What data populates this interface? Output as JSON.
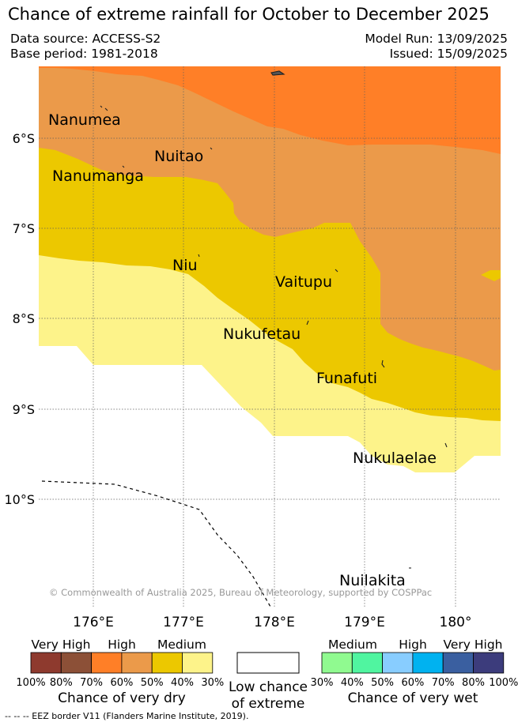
{
  "header": {
    "title": "Chance of extreme rainfall for October to December 2025",
    "data_source": "Data source: ACCESS-S2",
    "base_period": "Base period: 1981-2018",
    "model_run": "Model Run: 13/09/2025",
    "issued": "Issued: 15/09/2025"
  },
  "map": {
    "lat_labels": [
      "6°S",
      "7°S",
      "8°S",
      "9°S",
      "10°S"
    ],
    "lon_labels": [
      "176°E",
      "177°E",
      "178°E",
      "179°E",
      "180°"
    ],
    "islands": [
      "Nanumea",
      "Nuitao",
      "Nanumanga",
      "Niu",
      "Vaitupu",
      "Nukufetau",
      "Funafuti",
      "Nukulaelae",
      "Nuilakita"
    ],
    "copyright": "© Commonwealth of Australia 2025, Bureau of Meteorology, supported by COSPPac",
    "region_colors": {
      "very_high_dry": "#FF7F27",
      "high_dry": "#EB9A4A",
      "medium_dry": "#ECC800",
      "low_medium_dry": "#FDF38A",
      "low_chance": "#FFFFFF"
    }
  },
  "legend": {
    "dry": {
      "headers": [
        "Very High",
        "High",
        "Medium"
      ],
      "colors": [
        "#8E3A2E",
        "#8C5037",
        "#FF7F27",
        "#EB9A4A",
        "#ECC800",
        "#FDF38A"
      ],
      "ticks": [
        "100%",
        "80%",
        "70%",
        "60%",
        "50%",
        "40%",
        "30%"
      ],
      "title": "Chance of very dry"
    },
    "low": {
      "line1": "Low chance",
      "line2": "of extreme"
    },
    "wet": {
      "headers": [
        "Medium",
        "High",
        "Very High"
      ],
      "colors": [
        "#90FA90",
        "#50F5A0",
        "#88CDFF",
        "#00B2F0",
        "#3A5FA0",
        "#3C3C7C"
      ],
      "ticks": [
        "30%",
        "40%",
        "50%",
        "60%",
        "70%",
        "80%",
        "100%"
      ],
      "title": "Chance of very wet"
    }
  },
  "footer": {
    "eez_note": "--  --  -- EEZ border V11 (Flanders Marine Institute, 2019)."
  }
}
